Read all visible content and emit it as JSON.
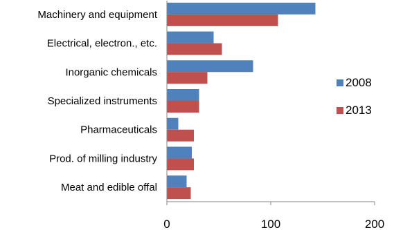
{
  "chart_data": {
    "type": "bar",
    "orientation": "horizontal",
    "categories": [
      "Machinery and equipment",
      "Electrical, electron., etc.",
      "Inorganic chemicals",
      "Specialized instruments",
      "Pharmaceuticals",
      "Prod. of milling industry",
      "Meat and edible offal"
    ],
    "series": [
      {
        "name": "2008",
        "color": "#4F81BD",
        "values": [
          143,
          45,
          83,
          31,
          11,
          24,
          19
        ]
      },
      {
        "name": "2013",
        "color": "#C0504D",
        "values": [
          107,
          53,
          39,
          31,
          26,
          26,
          23
        ]
      }
    ],
    "xlim": [
      0,
      200
    ],
    "xticks": [
      "0",
      "100",
      "200"
    ],
    "title": "",
    "xlabel": "",
    "ylabel": "",
    "legend_position": "right",
    "grid": false
  }
}
